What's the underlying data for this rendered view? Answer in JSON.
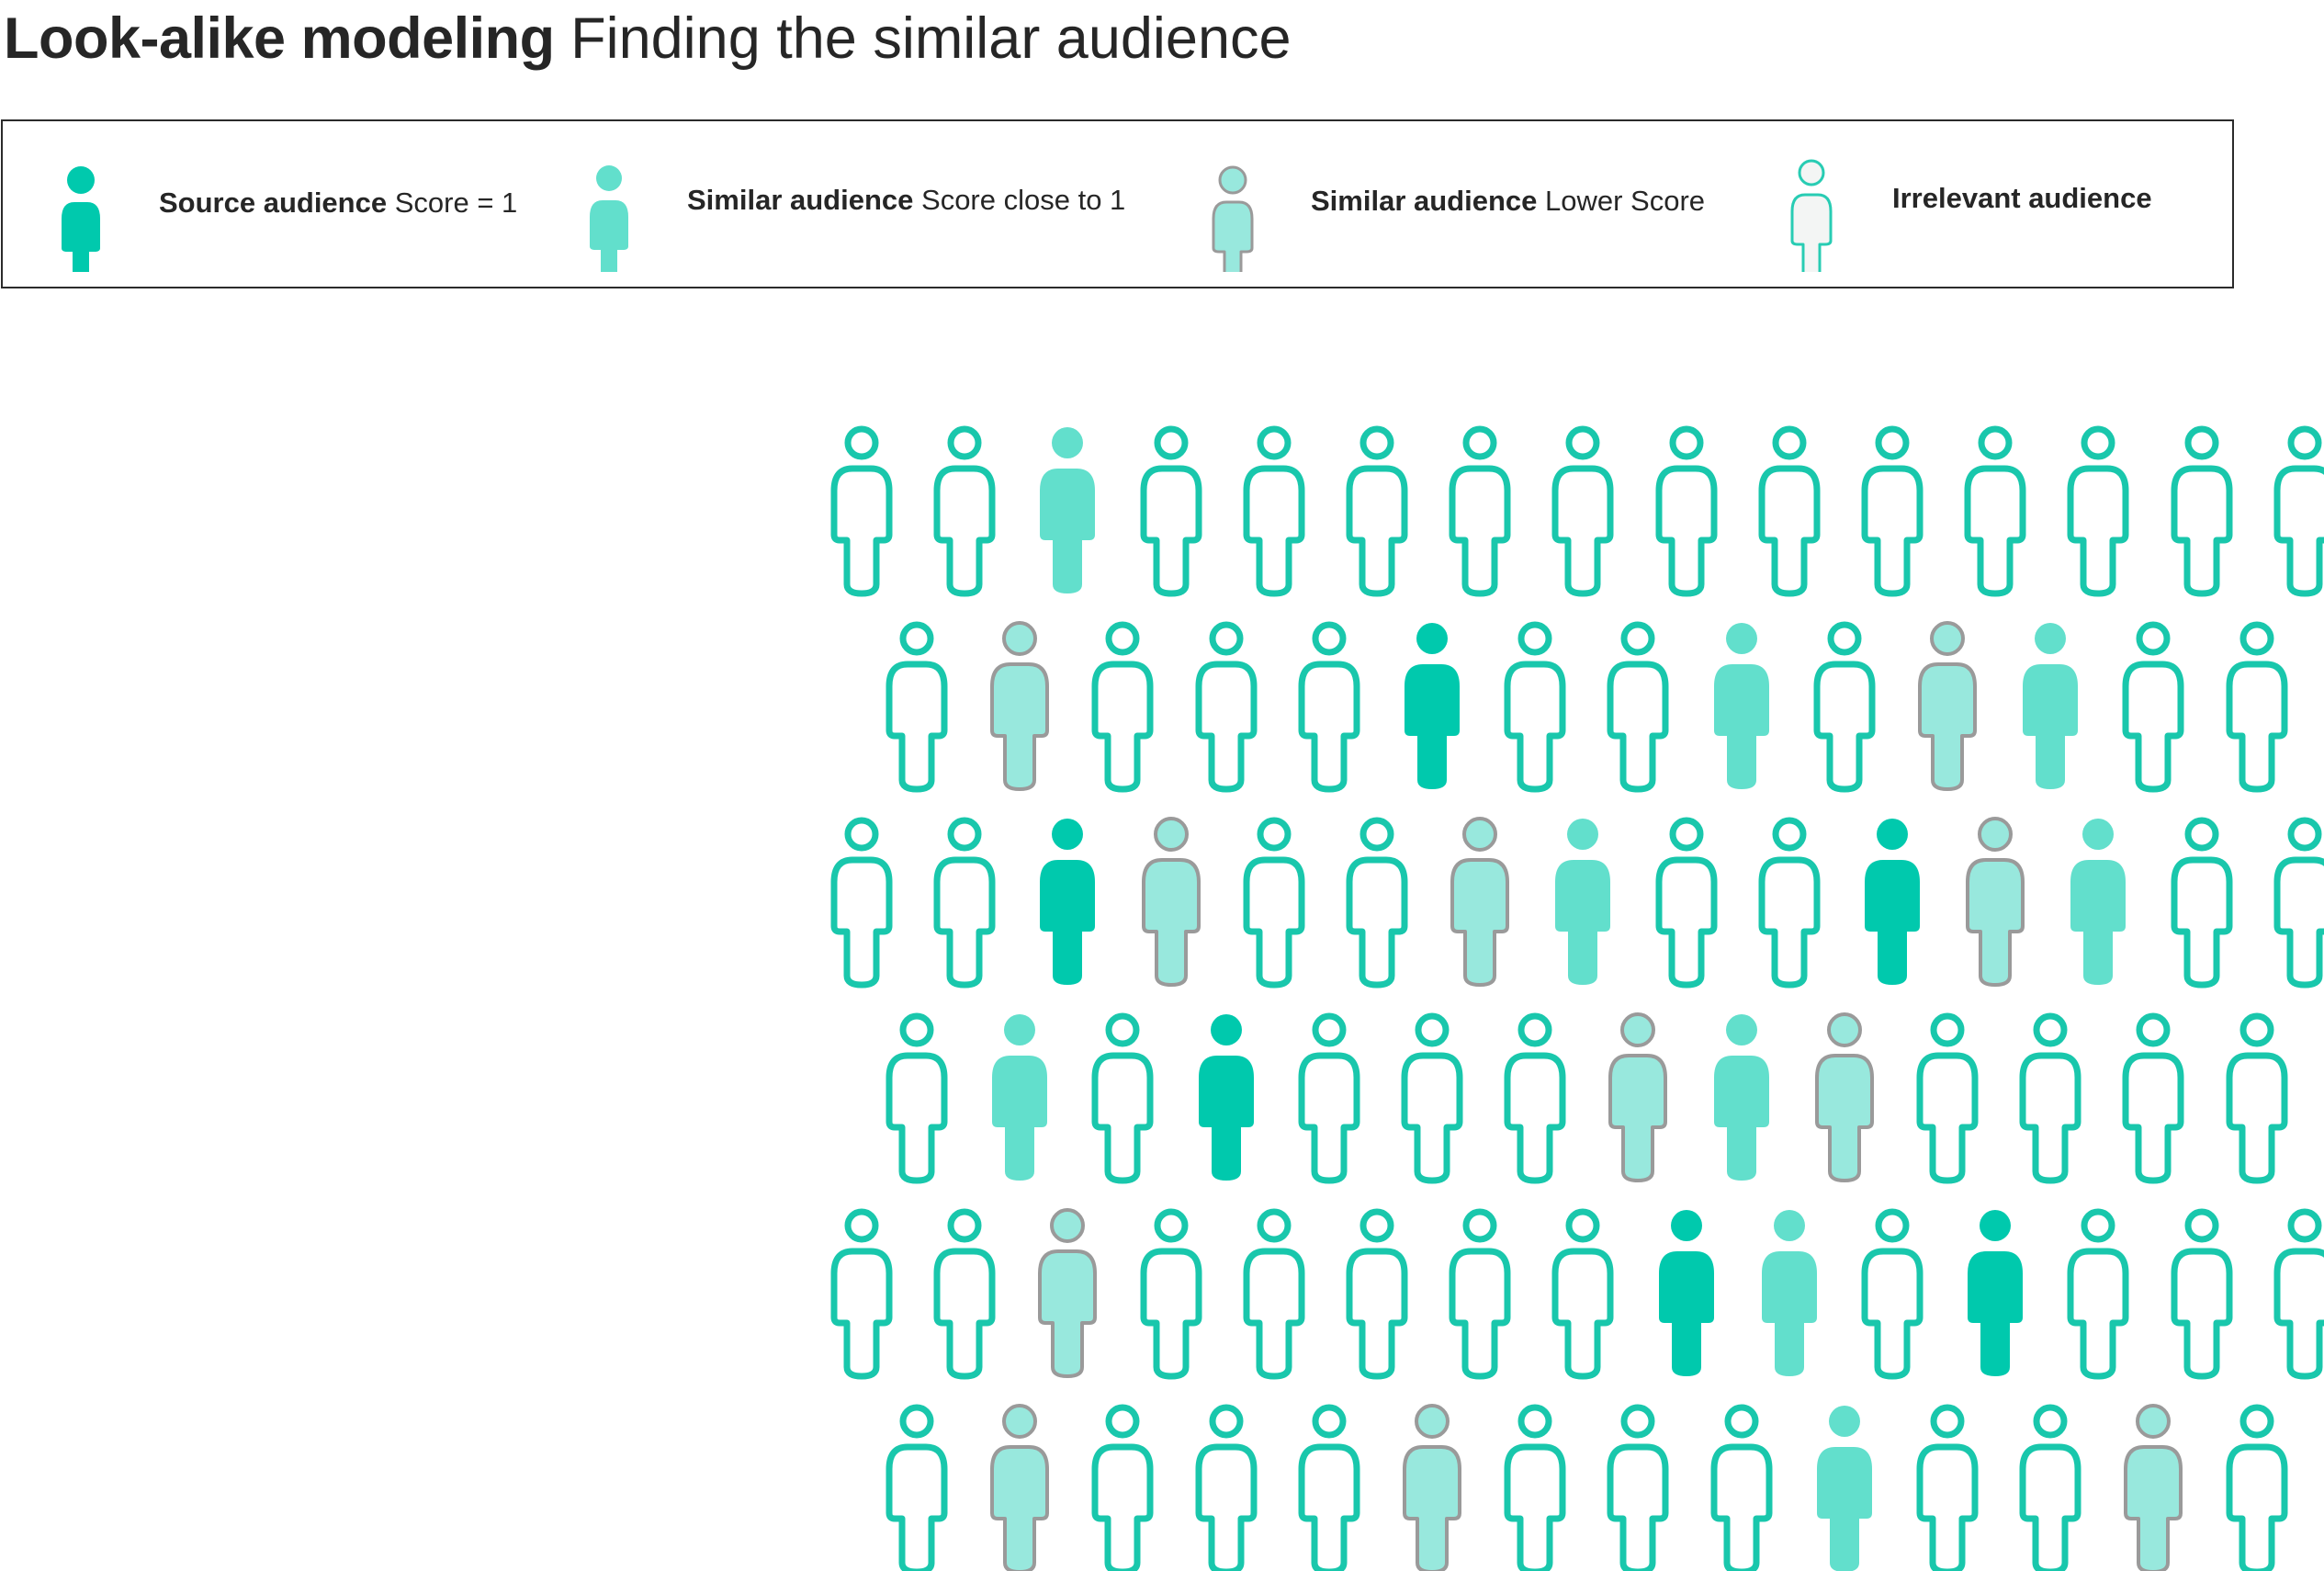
{
  "title": {
    "bold": "Look-alike modeling",
    "light": "Finding the similar audience"
  },
  "colors": {
    "source_fill": "#00c9ad",
    "close_fill": "#62dfcc",
    "lower_fill": "#98e8dd",
    "lower_stroke": "#9a9a9a",
    "irrelevant_stroke": "#19c7ac",
    "irrelevant_fill": "#ffffff",
    "legend_irrelevant_stroke": "#28ccb3",
    "legend_irrelevant_fill": "#f3f5f4"
  },
  "legend": {
    "items": [
      {
        "key": "source",
        "icon": "person-icon-source",
        "strong": "Source audience",
        "desc": "Score = 1"
      },
      {
        "key": "close",
        "icon": "person-icon-close",
        "strong": "Similar audience",
        "desc": "Score close to 1"
      },
      {
        "key": "lower",
        "icon": "person-icon-lower",
        "strong": "Similar audience",
        "desc": "Lower Score"
      },
      {
        "key": "irrelevant",
        "icon": "person-icon-irrelevant",
        "strong": "Irrelevant audience",
        "desc": ""
      }
    ]
  },
  "crowd": {
    "rows": [
      [
        "I",
        "I",
        "C",
        "I",
        "I",
        "I",
        "I",
        "I",
        "I",
        "I",
        "I",
        "I",
        "I",
        "I",
        "I"
      ],
      [
        "I",
        "L",
        "I",
        "I",
        "I",
        "S",
        "I",
        "I",
        "C",
        "I",
        "L",
        "C",
        "I",
        "I"
      ],
      [
        "I",
        "I",
        "S",
        "L",
        "I",
        "I",
        "L",
        "C",
        "I",
        "I",
        "S",
        "L",
        "C",
        "I",
        "I"
      ],
      [
        "I",
        "C",
        "I",
        "S",
        "I",
        "I",
        "I",
        "L",
        "C",
        "L",
        "I",
        "I",
        "I",
        "I"
      ],
      [
        "I",
        "I",
        "L",
        "I",
        "I",
        "I",
        "I",
        "I",
        "S",
        "C",
        "I",
        "S",
        "I",
        "I",
        "I"
      ],
      [
        "I",
        "L",
        "I",
        "I",
        "I",
        "L",
        "I",
        "I",
        "I",
        "C",
        "I",
        "I",
        "L",
        "I"
      ]
    ]
  }
}
